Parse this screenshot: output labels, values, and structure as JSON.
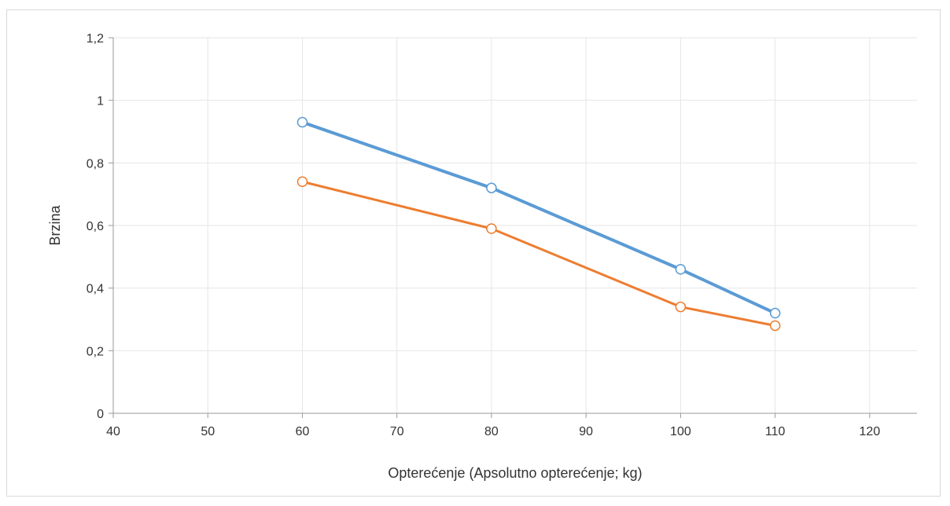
{
  "chart_data": {
    "type": "scatter",
    "xlabel": "Opterećenje (Apsolutno opterećenje; kg)",
    "ylabel": "Brzina",
    "xlim": [
      40,
      125
    ],
    "ylim": [
      0,
      1.2
    ],
    "x_ticks": [
      40,
      50,
      60,
      70,
      80,
      90,
      100,
      110,
      120
    ],
    "y_ticks": [
      0,
      0.2,
      0.4,
      0.6,
      0.8,
      1,
      1.2
    ],
    "x_tick_labels": [
      "40",
      "50",
      "60",
      "70",
      "80",
      "90",
      "100",
      "110",
      "120"
    ],
    "y_tick_labels": [
      "0",
      "0,2",
      "0,4",
      "0,6",
      "0,8",
      "1",
      "1,2"
    ],
    "grid": true,
    "series": [
      {
        "color": "#5B9BD5",
        "x": [
          60,
          80,
          100,
          110
        ],
        "y": [
          0.93,
          0.72,
          0.46,
          0.32
        ]
      },
      {
        "color": "#ED7D31",
        "x": [
          60,
          80,
          100,
          110
        ],
        "y": [
          0.74,
          0.59,
          0.34,
          0.28
        ]
      }
    ]
  }
}
